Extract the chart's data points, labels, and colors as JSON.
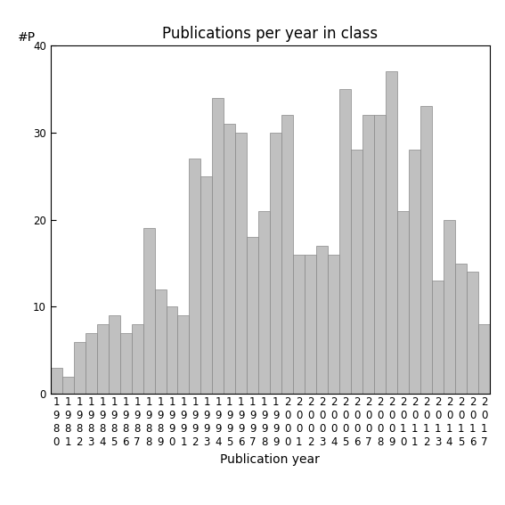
{
  "title": "Publications per year in class",
  "xlabel": "Publication year",
  "ylabel": "#P",
  "years": [
    1980,
    1981,
    1982,
    1983,
    1984,
    1985,
    1986,
    1987,
    1988,
    1989,
    1990,
    1991,
    1992,
    1993,
    1994,
    1995,
    1996,
    1997,
    1998,
    1999,
    2000,
    2001,
    2002,
    2003,
    2004,
    2005,
    2006,
    2007,
    2008,
    2009,
    2010,
    2011,
    2012,
    2013,
    2014,
    2015,
    2016,
    2017
  ],
  "values": [
    3,
    2,
    6,
    7,
    8,
    9,
    7,
    8,
    19,
    12,
    10,
    9,
    27,
    25,
    34,
    31,
    30,
    18,
    21,
    30,
    32,
    16,
    16,
    17,
    16,
    35,
    28,
    32,
    32,
    37,
    21,
    28,
    33,
    13,
    20,
    15,
    14,
    8
  ],
  "bar_color": "#c0c0c0",
  "bar_edge_color": "#888888",
  "ylim": [
    0,
    40
  ],
  "yticks": [
    0,
    10,
    20,
    30,
    40
  ],
  "background_color": "#ffffff",
  "title_fontsize": 12,
  "label_fontsize": 10,
  "tick_fontsize": 8.5
}
